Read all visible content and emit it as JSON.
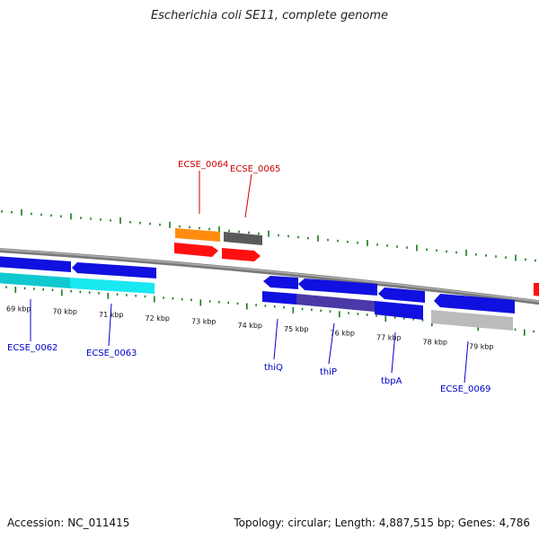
{
  "title": "Escherichia coli SE11, complete genome",
  "footer": {
    "accession": "Accession: NC_011415",
    "summary": "Topology: circular; Length: 4,887,515 bp; Genes: 4,786"
  },
  "colors": {
    "backbone": "#808080",
    "tick": "#1a7a1a",
    "blue_gene": "#1010e0",
    "cyan_gene": "#18e0e8",
    "red_gene": "#ff1010",
    "orange_gene": "#ff8c10",
    "gray_gene": "#606060",
    "light_gray_gene": "#bbbbbb",
    "dark_purple_gene": "#4a3aa8",
    "top_label": "#cc0000",
    "bottom_label": "#0000cc"
  },
  "scale": {
    "unit": "kbp",
    "ticks": [
      {
        "label": "69 kbp"
      },
      {
        "label": "70 kbp"
      },
      {
        "label": "71 kbp"
      },
      {
        "label": "72 kbp"
      },
      {
        "label": "73 kbp"
      },
      {
        "label": "74 kbp"
      },
      {
        "label": "75 kbp"
      },
      {
        "label": "76 kbp"
      },
      {
        "label": "77 kbp"
      },
      {
        "label": "78 kbp"
      },
      {
        "label": "79 kbp"
      }
    ]
  },
  "genes": {
    "top": [
      {
        "label": "ECSE_0064"
      },
      {
        "label": "ECSE_0065"
      }
    ],
    "bottom": [
      {
        "label": "ECSE_0062"
      },
      {
        "label": "ECSE_0063"
      },
      {
        "label": "thiQ"
      },
      {
        "label": "thiP"
      },
      {
        "label": "tbpA"
      },
      {
        "label": "ECSE_0069"
      }
    ]
  }
}
